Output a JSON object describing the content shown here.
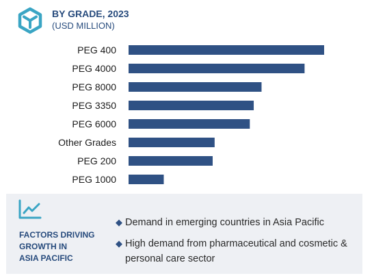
{
  "header": {
    "title": "BY GRADE, 2023",
    "subtitle": "(USD MILLION)"
  },
  "chart_data": {
    "type": "bar",
    "orientation": "horizontal",
    "title": "BY GRADE, 2023",
    "subtitle": "(USD MILLION)",
    "categories": [
      "PEG 400",
      "PEG 4000",
      "PEG 8000",
      "PEG 3350",
      "PEG 6000",
      "Other Grades",
      "PEG 200",
      "PEG 1000"
    ],
    "values": [
      100,
      90,
      68,
      64,
      62,
      44,
      43,
      18
    ],
    "value_scale": "relative (no axis or data labels shown)",
    "xlim": [
      0,
      100
    ],
    "grid": false,
    "color": "#2f5184"
  },
  "factors": {
    "title": "FACTORS DRIVING GROWTH IN ASIA PACIFIC",
    "title_lines": [
      "FACTORS DRIVING",
      "GROWTH IN",
      "ASIA PACIFIC"
    ],
    "items": [
      "Demand in emerging countries in Asia Pacific",
      "High demand from pharmaceutical and cosmetic & personal care sector"
    ]
  },
  "colors": {
    "accent": "#2f5184",
    "icon_teal": "#3aa5c4",
    "panel_bg": "#eef0f4"
  },
  "icons": {
    "logo": "cube-icon",
    "factors": "trend-line-icon",
    "bullet": "diamond-icon"
  }
}
